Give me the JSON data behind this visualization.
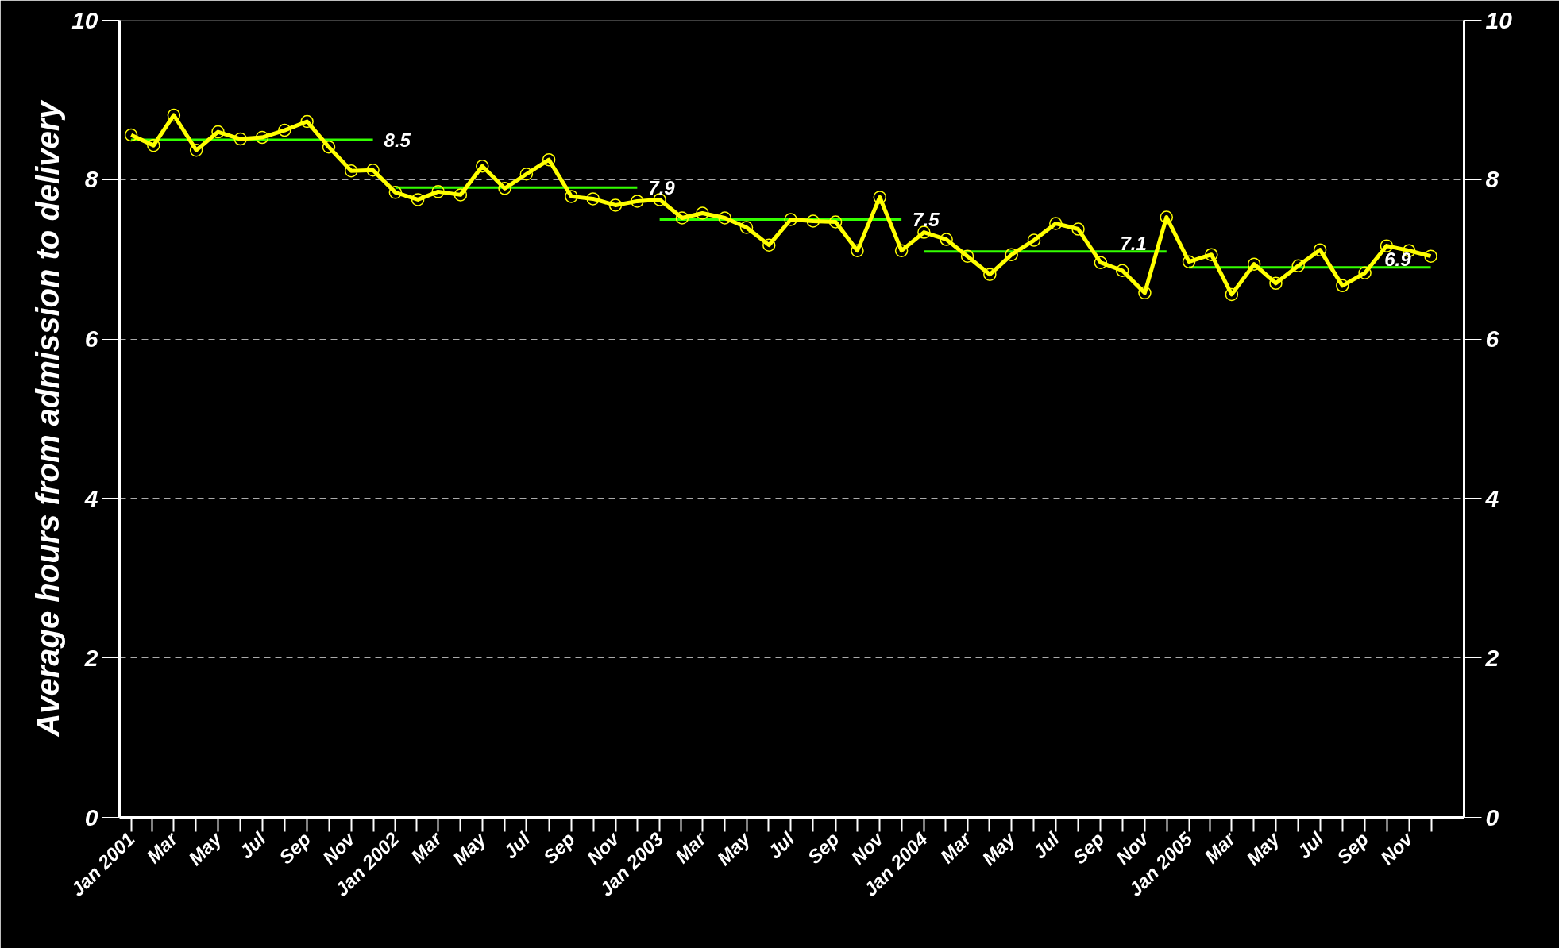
{
  "chart_data": {
    "type": "line",
    "ylabel": "Average hours from admission to delivery",
    "x": [
      "2001-01",
      "2001-02",
      "2001-03",
      "2001-04",
      "2001-05",
      "2001-06",
      "2001-07",
      "2001-08",
      "2001-09",
      "2001-10",
      "2001-11",
      "2001-12",
      "2002-01",
      "2002-02",
      "2002-03",
      "2002-04",
      "2002-05",
      "2002-06",
      "2002-07",
      "2002-08",
      "2002-09",
      "2002-10",
      "2002-11",
      "2002-12",
      "2003-01",
      "2003-02",
      "2003-03",
      "2003-04",
      "2003-05",
      "2003-06",
      "2003-07",
      "2003-08",
      "2003-09",
      "2003-10",
      "2003-11",
      "2003-12",
      "2004-01",
      "2004-02",
      "2004-03",
      "2004-04",
      "2004-05",
      "2004-06",
      "2004-07",
      "2004-08",
      "2004-09",
      "2004-10",
      "2004-11",
      "2004-12",
      "2005-01",
      "2005-02",
      "2005-03",
      "2005-04",
      "2005-05",
      "2005-06",
      "2005-07",
      "2005-08",
      "2005-09",
      "2005-10",
      "2005-11",
      "2005-12"
    ],
    "series": [
      {
        "color": "#33ff00",
        "marker": "none",
        "x": [
          "2001-01",
          "2001-12"
        ],
        "values": [
          8.5,
          8.5
        ],
        "value_labels": [
          null,
          "8.5"
        ]
      },
      {
        "color": "#33ff00",
        "marker": "none",
        "x": [
          "2002-01",
          "2002-12"
        ],
        "values": [
          7.9,
          7.9
        ],
        "value_labels": [
          null,
          "7.9"
        ]
      },
      {
        "color": "#33ff00",
        "marker": "none",
        "x": [
          "2003-01",
          "2003-12"
        ],
        "values": [
          7.5,
          7.5
        ],
        "value_labels": [
          null,
          "7.5"
        ]
      },
      {
        "color": "#33ff00",
        "marker": "none",
        "x": [
          "2004-01",
          "2004-12"
        ],
        "values": [
          7.1,
          7.1
        ],
        "value_labels": [
          null,
          "7.1"
        ]
      },
      {
        "color": "#33ff00",
        "marker": "none",
        "x": [
          "2005-01",
          "2005-12"
        ],
        "values": [
          6.9,
          6.9
        ],
        "value_labels": [
          null,
          "6.9"
        ]
      },
      {
        "color": "#ffff00",
        "marker": "circle",
        "values": [
          8.56,
          8.43,
          8.81,
          8.37,
          8.6,
          8.51,
          8.53,
          8.62,
          8.73,
          8.41,
          8.11,
          8.12,
          7.84,
          7.75,
          7.85,
          7.81,
          8.17,
          7.89,
          8.07,
          8.25,
          7.79,
          7.76,
          7.68,
          7.73,
          7.75,
          7.52,
          7.58,
          7.52,
          7.4,
          7.18,
          7.5,
          7.48,
          7.47,
          7.11,
          7.78,
          7.11,
          7.34,
          7.25,
          7.04,
          6.81,
          7.06,
          7.24,
          7.45,
          7.38,
          6.96,
          6.86,
          6.58,
          7.53,
          6.97,
          7.06,
          6.56,
          6.94,
          6.7,
          6.92,
          7.12,
          6.67,
          6.83,
          7.17,
          7.11,
          7.04
        ]
      }
    ],
    "xlim": [
      "2000-12-16",
      "2006-01-16"
    ],
    "xticks": [
      {
        "value": "2001-01",
        "label": "Jan 2001"
      },
      {
        "value": "2001-03",
        "label": "Mar"
      },
      {
        "value": "2001-05",
        "label": "May"
      },
      {
        "value": "2001-07",
        "label": "Jul"
      },
      {
        "value": "2001-09",
        "label": "Sep"
      },
      {
        "value": "2001-11",
        "label": "Nov"
      },
      {
        "value": "2002-01",
        "label": "Jan 2002"
      },
      {
        "value": "2002-03",
        "label": "Mar"
      },
      {
        "value": "2002-05",
        "label": "May"
      },
      {
        "value": "2002-07",
        "label": "Jul"
      },
      {
        "value": "2002-09",
        "label": "Sep"
      },
      {
        "value": "2002-11",
        "label": "Nov"
      },
      {
        "value": "2003-01",
        "label": "Jan 2003"
      },
      {
        "value": "2003-03",
        "label": "Mar"
      },
      {
        "value": "2003-05",
        "label": "May"
      },
      {
        "value": "2003-07",
        "label": "Jul"
      },
      {
        "value": "2003-09",
        "label": "Sep"
      },
      {
        "value": "2003-11",
        "label": "Nov"
      },
      {
        "value": "2004-01",
        "label": "Jan 2004"
      },
      {
        "value": "2004-03",
        "label": "Mar"
      },
      {
        "value": "2004-05",
        "label": "May"
      },
      {
        "value": "2004-07",
        "label": "Jul"
      },
      {
        "value": "2004-09",
        "label": "Sep"
      },
      {
        "value": "2004-11",
        "label": "Nov"
      },
      {
        "value": "2005-01",
        "label": "Jan 2005"
      },
      {
        "value": "2005-03",
        "label": "Mar"
      },
      {
        "value": "2005-05",
        "label": "May"
      },
      {
        "value": "2005-07",
        "label": "Jul"
      },
      {
        "value": "2005-09",
        "label": "Sep"
      },
      {
        "value": "2005-11",
        "label": "Nov"
      }
    ],
    "ylim": [
      0,
      10
    ],
    "yticks": [
      0,
      2,
      4,
      6,
      8,
      10
    ],
    "y2lim": [
      0,
      10
    ],
    "y2ticks": [
      0,
      2,
      4,
      6,
      8,
      10
    ],
    "grid": "y",
    "line_style": "solid"
  }
}
